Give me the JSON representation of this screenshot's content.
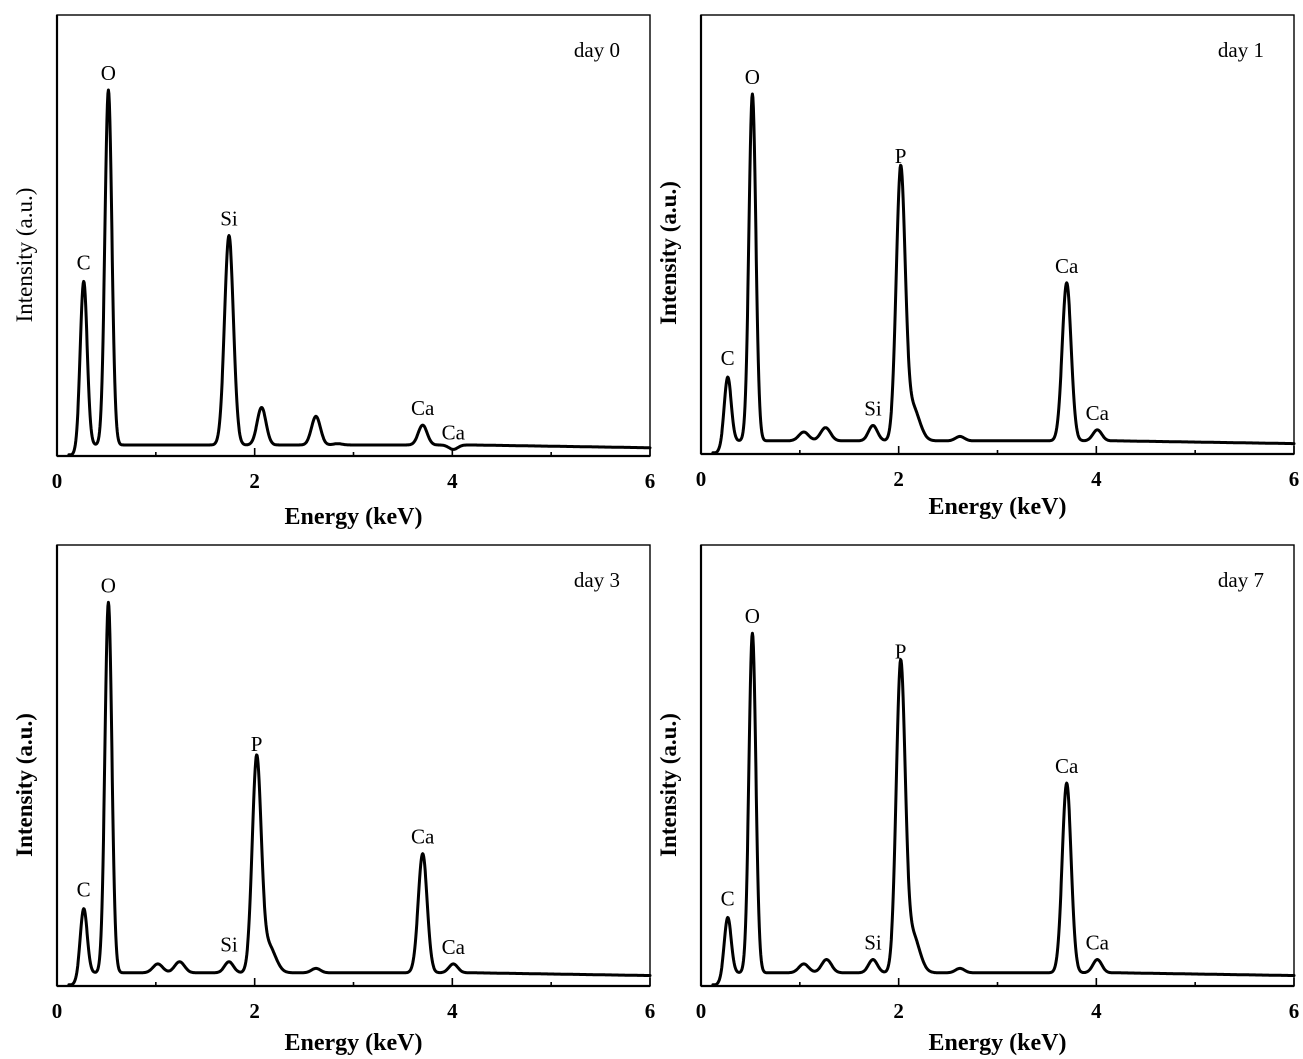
{
  "chart_data": [
    {
      "type": "line",
      "annotation": "day 0",
      "xlabel": "Energy (keV)",
      "ylabel": "Intensity (a.u.)",
      "xlim": [
        0,
        6
      ],
      "ylim": [
        0,
        100
      ],
      "xticks": [
        "0",
        "2",
        "4",
        "6"
      ],
      "yticks": [],
      "grid": false,
      "ylabel_bold": false,
      "baseline": 2.5,
      "peaks": [
        {
          "label": "C",
          "x": 0.27,
          "y": 40
        },
        {
          "label": "O",
          "x": 0.52,
          "y": 83
        },
        {
          "label": "Si",
          "x": 1.74,
          "y": 50
        },
        {
          "label": "",
          "x": 2.07,
          "y": 11
        },
        {
          "label": "",
          "x": 2.62,
          "y": 9
        },
        {
          "label": "",
          "x": 2.84,
          "y": 2.8
        },
        {
          "label": "Ca",
          "x": 3.7,
          "y": 7
        },
        {
          "label": "Ca",
          "x": 4.01,
          "y": 1.5
        }
      ]
    },
    {
      "type": "line",
      "annotation": "day 1",
      "xlabel": "Energy (keV)",
      "ylabel": "Intensity (a.u.)",
      "xlim": [
        0,
        6
      ],
      "ylim": [
        0,
        100
      ],
      "xticks": [
        "0",
        "2",
        "4",
        "6"
      ],
      "yticks": [],
      "grid": false,
      "ylabel_bold": true,
      "baseline": 3,
      "peaks": [
        {
          "label": "C",
          "x": 0.27,
          "y": 18
        },
        {
          "label": "O",
          "x": 0.52,
          "y": 82
        },
        {
          "label": "",
          "x": 1.04,
          "y": 5
        },
        {
          "label": "",
          "x": 1.26,
          "y": 6
        },
        {
          "label": "Si",
          "x": 1.74,
          "y": 6.5
        },
        {
          "label": "P",
          "x": 2.02,
          "y": 64
        },
        {
          "label": "",
          "x": 2.62,
          "y": 4
        },
        {
          "label": "Ca",
          "x": 3.7,
          "y": 39
        },
        {
          "label": "Ca",
          "x": 4.01,
          "y": 5.5
        }
      ]
    },
    {
      "type": "line",
      "annotation": "day 3",
      "xlabel": "Energy (keV)",
      "ylabel": "Intensity (a.u.)",
      "xlim": [
        0,
        6
      ],
      "ylim": [
        0,
        100
      ],
      "xticks": [
        "0",
        "2",
        "4",
        "6"
      ],
      "yticks": [],
      "grid": false,
      "ylabel_bold": true,
      "baseline": 3,
      "peaks": [
        {
          "label": "C",
          "x": 0.27,
          "y": 18
        },
        {
          "label": "O",
          "x": 0.52,
          "y": 87
        },
        {
          "label": "",
          "x": 1.02,
          "y": 5
        },
        {
          "label": "",
          "x": 1.24,
          "y": 5.5
        },
        {
          "label": "Si",
          "x": 1.74,
          "y": 5.5
        },
        {
          "label": "P",
          "x": 2.02,
          "y": 51
        },
        {
          "label": "",
          "x": 2.62,
          "y": 4
        },
        {
          "label": "Ca",
          "x": 3.7,
          "y": 30
        },
        {
          "label": "Ca",
          "x": 4.01,
          "y": 5
        }
      ]
    },
    {
      "type": "line",
      "annotation": "day 7",
      "xlabel": "Energy (keV)",
      "ylabel": "Intensity (a.u.)",
      "xlim": [
        0,
        6
      ],
      "ylim": [
        0,
        100
      ],
      "xticks": [
        "0",
        "2",
        "4",
        "6"
      ],
      "yticks": [],
      "grid": false,
      "ylabel_bold": true,
      "baseline": 3,
      "peaks": [
        {
          "label": "C",
          "x": 0.27,
          "y": 16
        },
        {
          "label": "O",
          "x": 0.52,
          "y": 80
        },
        {
          "label": "",
          "x": 1.04,
          "y": 5
        },
        {
          "label": "",
          "x": 1.27,
          "y": 6
        },
        {
          "label": "Si",
          "x": 1.74,
          "y": 6
        },
        {
          "label": "P",
          "x": 2.02,
          "y": 72
        },
        {
          "label": "",
          "x": 2.62,
          "y": 4
        },
        {
          "label": "Ca",
          "x": 3.7,
          "y": 46
        },
        {
          "label": "Ca",
          "x": 4.01,
          "y": 6
        }
      ]
    }
  ]
}
